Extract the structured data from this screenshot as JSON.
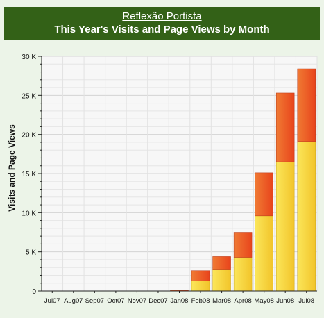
{
  "header": {
    "site_name": "Reflexão Portista",
    "title": "This Year's Visits and Page Views by Month"
  },
  "colors": {
    "header_bg": "#336117",
    "page_bg": "#ecf4e8",
    "plot_bg": "#f7f7f7",
    "visits_bar": "#f2c42a",
    "pageviews_bar": "#e8441c"
  },
  "chart_data": {
    "type": "bar",
    "stacked": true,
    "title": "This Year's Visits and Page Views by Month",
    "xlabel": "",
    "ylabel": "Visits and Page Views",
    "ylim": [
      0,
      30000
    ],
    "yticks": [
      0,
      5000,
      10000,
      15000,
      20000,
      25000,
      30000
    ],
    "ytick_labels": [
      "0",
      "5 K",
      "10 K",
      "15 K",
      "20 K",
      "25 K",
      "30 K"
    ],
    "grid": true,
    "legend": "none",
    "categories": [
      "Jul07",
      "Aug07",
      "Sep07",
      "Oct07",
      "Nov07",
      "Dec07",
      "Jan08",
      "Feb08",
      "Mar08",
      "Apr08",
      "May08",
      "Jun08",
      "Jul08"
    ],
    "series": [
      {
        "values": [
          0,
          0,
          0,
          0,
          0,
          0,
          30,
          1300,
          2700,
          4300,
          9600,
          16500,
          19100
        ]
      },
      {
        "values": [
          0,
          0,
          0,
          0,
          0,
          0,
          70,
          1300,
          1700,
          3200,
          5500,
          8800,
          9300
        ]
      }
    ]
  }
}
